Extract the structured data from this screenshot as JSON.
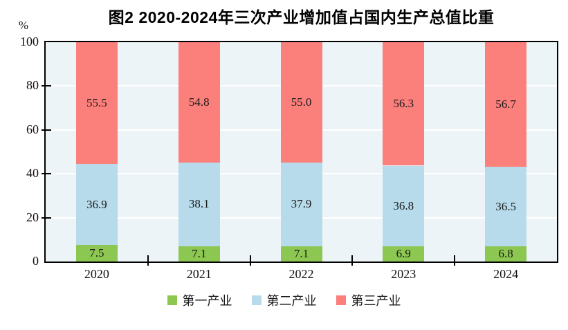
{
  "chart": {
    "title": "图2  2020-2024年三次产业增加值占国内生产总值比重",
    "unit_label": "%"
  },
  "chart_data": {
    "type": "bar",
    "stacked": true,
    "title": "图2  2020-2024年三次产业增加值占国内生产总值比重",
    "xlabel": "",
    "ylabel": "%",
    "ylim": [
      0,
      100
    ],
    "yticks": [
      0,
      20,
      40,
      60,
      80,
      100
    ],
    "grid": true,
    "gridline_color": "#ffffff",
    "plot_bg_color": "#EDF4F8",
    "axis_color": "#000000",
    "legend_position": "bottom",
    "categories": [
      "2020",
      "2021",
      "2022",
      "2023",
      "2024"
    ],
    "series": [
      {
        "name": "第一产业",
        "color": "#8CC751",
        "values": [
          7.5,
          7.1,
          7.1,
          6.9,
          6.8
        ]
      },
      {
        "name": "第二产业",
        "color": "#B7DBEA",
        "values": [
          36.9,
          38.1,
          37.9,
          36.8,
          36.5
        ]
      },
      {
        "name": "第三产业",
        "color": "#FB7F7B",
        "values": [
          55.5,
          54.8,
          55.0,
          56.3,
          56.7
        ]
      }
    ]
  }
}
